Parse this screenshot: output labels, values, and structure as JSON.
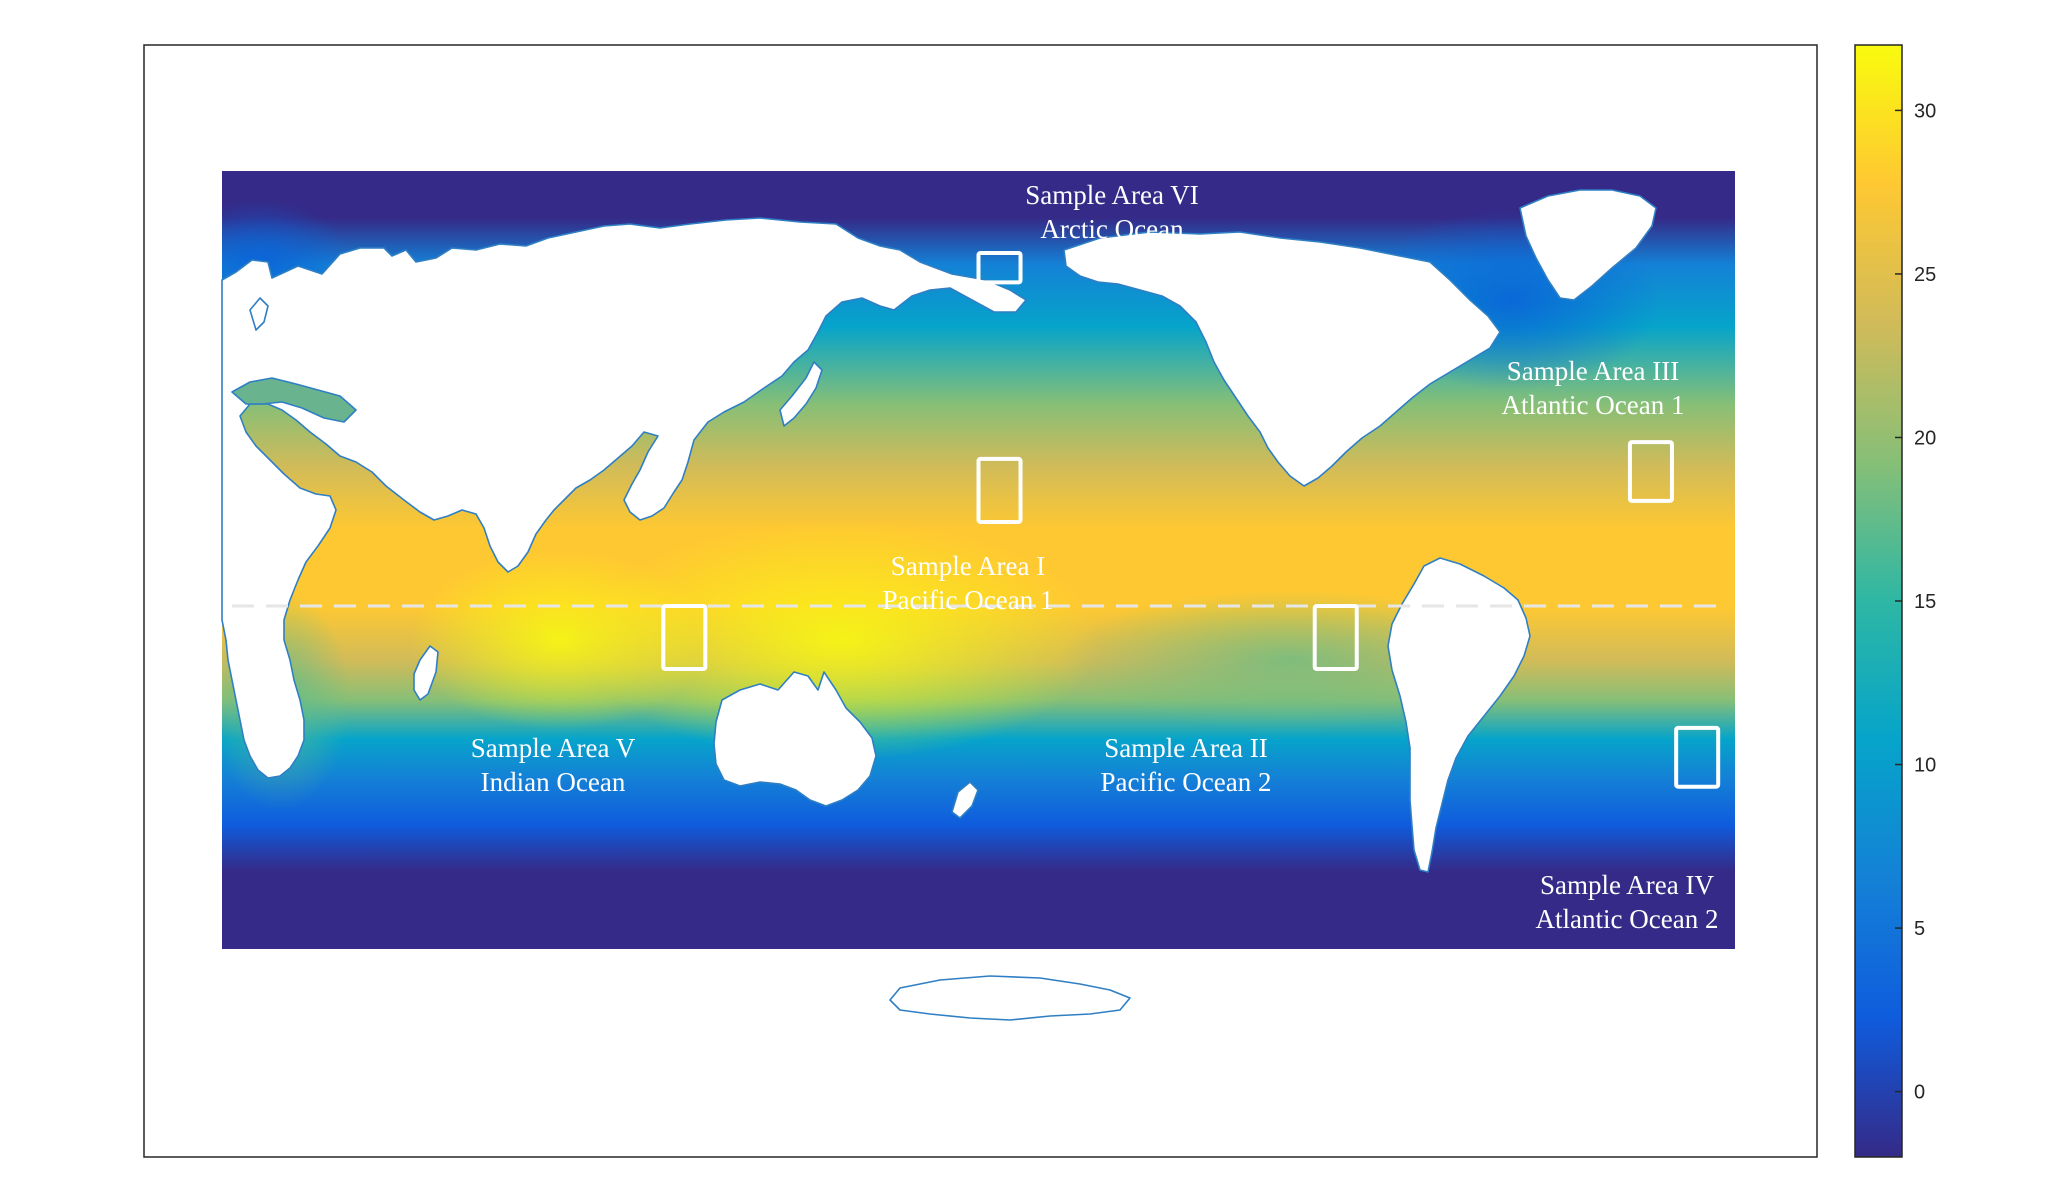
{
  "map": {
    "type": "sea surface temperature map",
    "projection": "equirectangular",
    "center_longitude": 150,
    "equator_line": "dashed"
  },
  "sample_areas": [
    {
      "id": "I",
      "line1": "Sample Area I",
      "line2": "Pacific Ocean 1",
      "lon": [
        150,
        160
      ],
      "lat": [
        20,
        35
      ]
    },
    {
      "id": "II",
      "line1": "Sample Area II",
      "line2": "Pacific Ocean 2",
      "lon": [
        -130,
        -120
      ],
      "lat": [
        -15,
        0
      ]
    },
    {
      "id": "III",
      "line1": "Sample Area III",
      "line2": "Atlantic Ocean 1",
      "lon": [
        -55,
        -45
      ],
      "lat": [
        25,
        39
      ]
    },
    {
      "id": "IV",
      "line1": "Sample Area IV",
      "line2": "Atlantic Ocean 2",
      "lon": [
        -44,
        -34
      ],
      "lat": [
        -43,
        -29
      ]
    },
    {
      "id": "V",
      "line1": "Sample Area V",
      "line2": "Indian Ocean",
      "lon": [
        75,
        85
      ],
      "lat": [
        -15,
        0
      ]
    },
    {
      "id": "VI",
      "line1": "Sample Area VI",
      "line2": "Arctic Ocean",
      "lon": [
        150,
        160
      ],
      "lat": [
        77,
        84
      ]
    }
  ],
  "colorbar": {
    "range": [
      -2,
      32
    ],
    "ticks": [
      "0",
      "5",
      "10",
      "15",
      "20",
      "25",
      "30"
    ],
    "colormap": "parula",
    "stops": [
      "#352a87",
      "#0f5cdd",
      "#1481d6",
      "#06a4ca",
      "#2eb7a4",
      "#87bf77",
      "#d1bb59",
      "#fec832",
      "#f9fb0e"
    ]
  },
  "colors": {
    "land": "#ffffff",
    "coast": "#2f7fc4",
    "box": "#ffffff",
    "frame": "#262626"
  }
}
